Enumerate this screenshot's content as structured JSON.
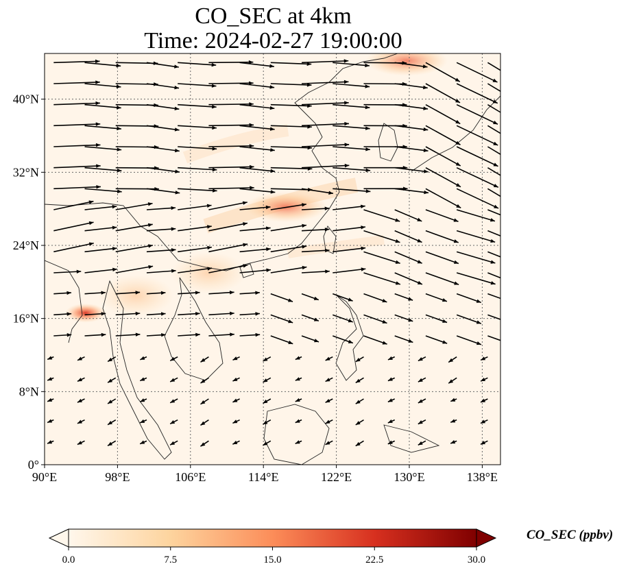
{
  "title": {
    "line1": "CO_SEC at 4km",
    "line2": "Time: 2024-02-27 19:00:00"
  },
  "map": {
    "projection": "PlateCarree",
    "lon_range": [
      90,
      140
    ],
    "lat_range": [
      0,
      45
    ],
    "gridlines": "dotted",
    "lon_ticks": [
      "90°E",
      "98°E",
      "106°E",
      "114°E",
      "122°E",
      "130°E",
      "138°E"
    ],
    "lat_ticks": [
      "0°",
      "8°N",
      "16°N",
      "24°N",
      "32°N",
      "40°N"
    ],
    "field": "CO_SEC",
    "overlay": "wind vectors",
    "colormap": "OrRd",
    "hotspots": [
      {
        "lon": 94.5,
        "lat": 16.6,
        "level": "high"
      },
      {
        "lon": 129.7,
        "lat": 44.2,
        "level": "medium"
      },
      {
        "lon": 116.5,
        "lat": 28.2,
        "level": "medium"
      },
      {
        "lon": 100.0,
        "lat": 18.5,
        "level": "low"
      },
      {
        "lon": 108.0,
        "lat": 21.0,
        "level": "low"
      }
    ]
  },
  "colorbar": {
    "label": "CO_SEC (ppbv)",
    "ticks": [
      "0.0",
      "7.5",
      "15.0",
      "22.5",
      "30.0"
    ],
    "min": 0,
    "max": 30,
    "extend": "both",
    "colors": [
      "#fff7ec",
      "#fdd49e",
      "#fc8d59",
      "#d7301f",
      "#7f0000"
    ]
  }
}
